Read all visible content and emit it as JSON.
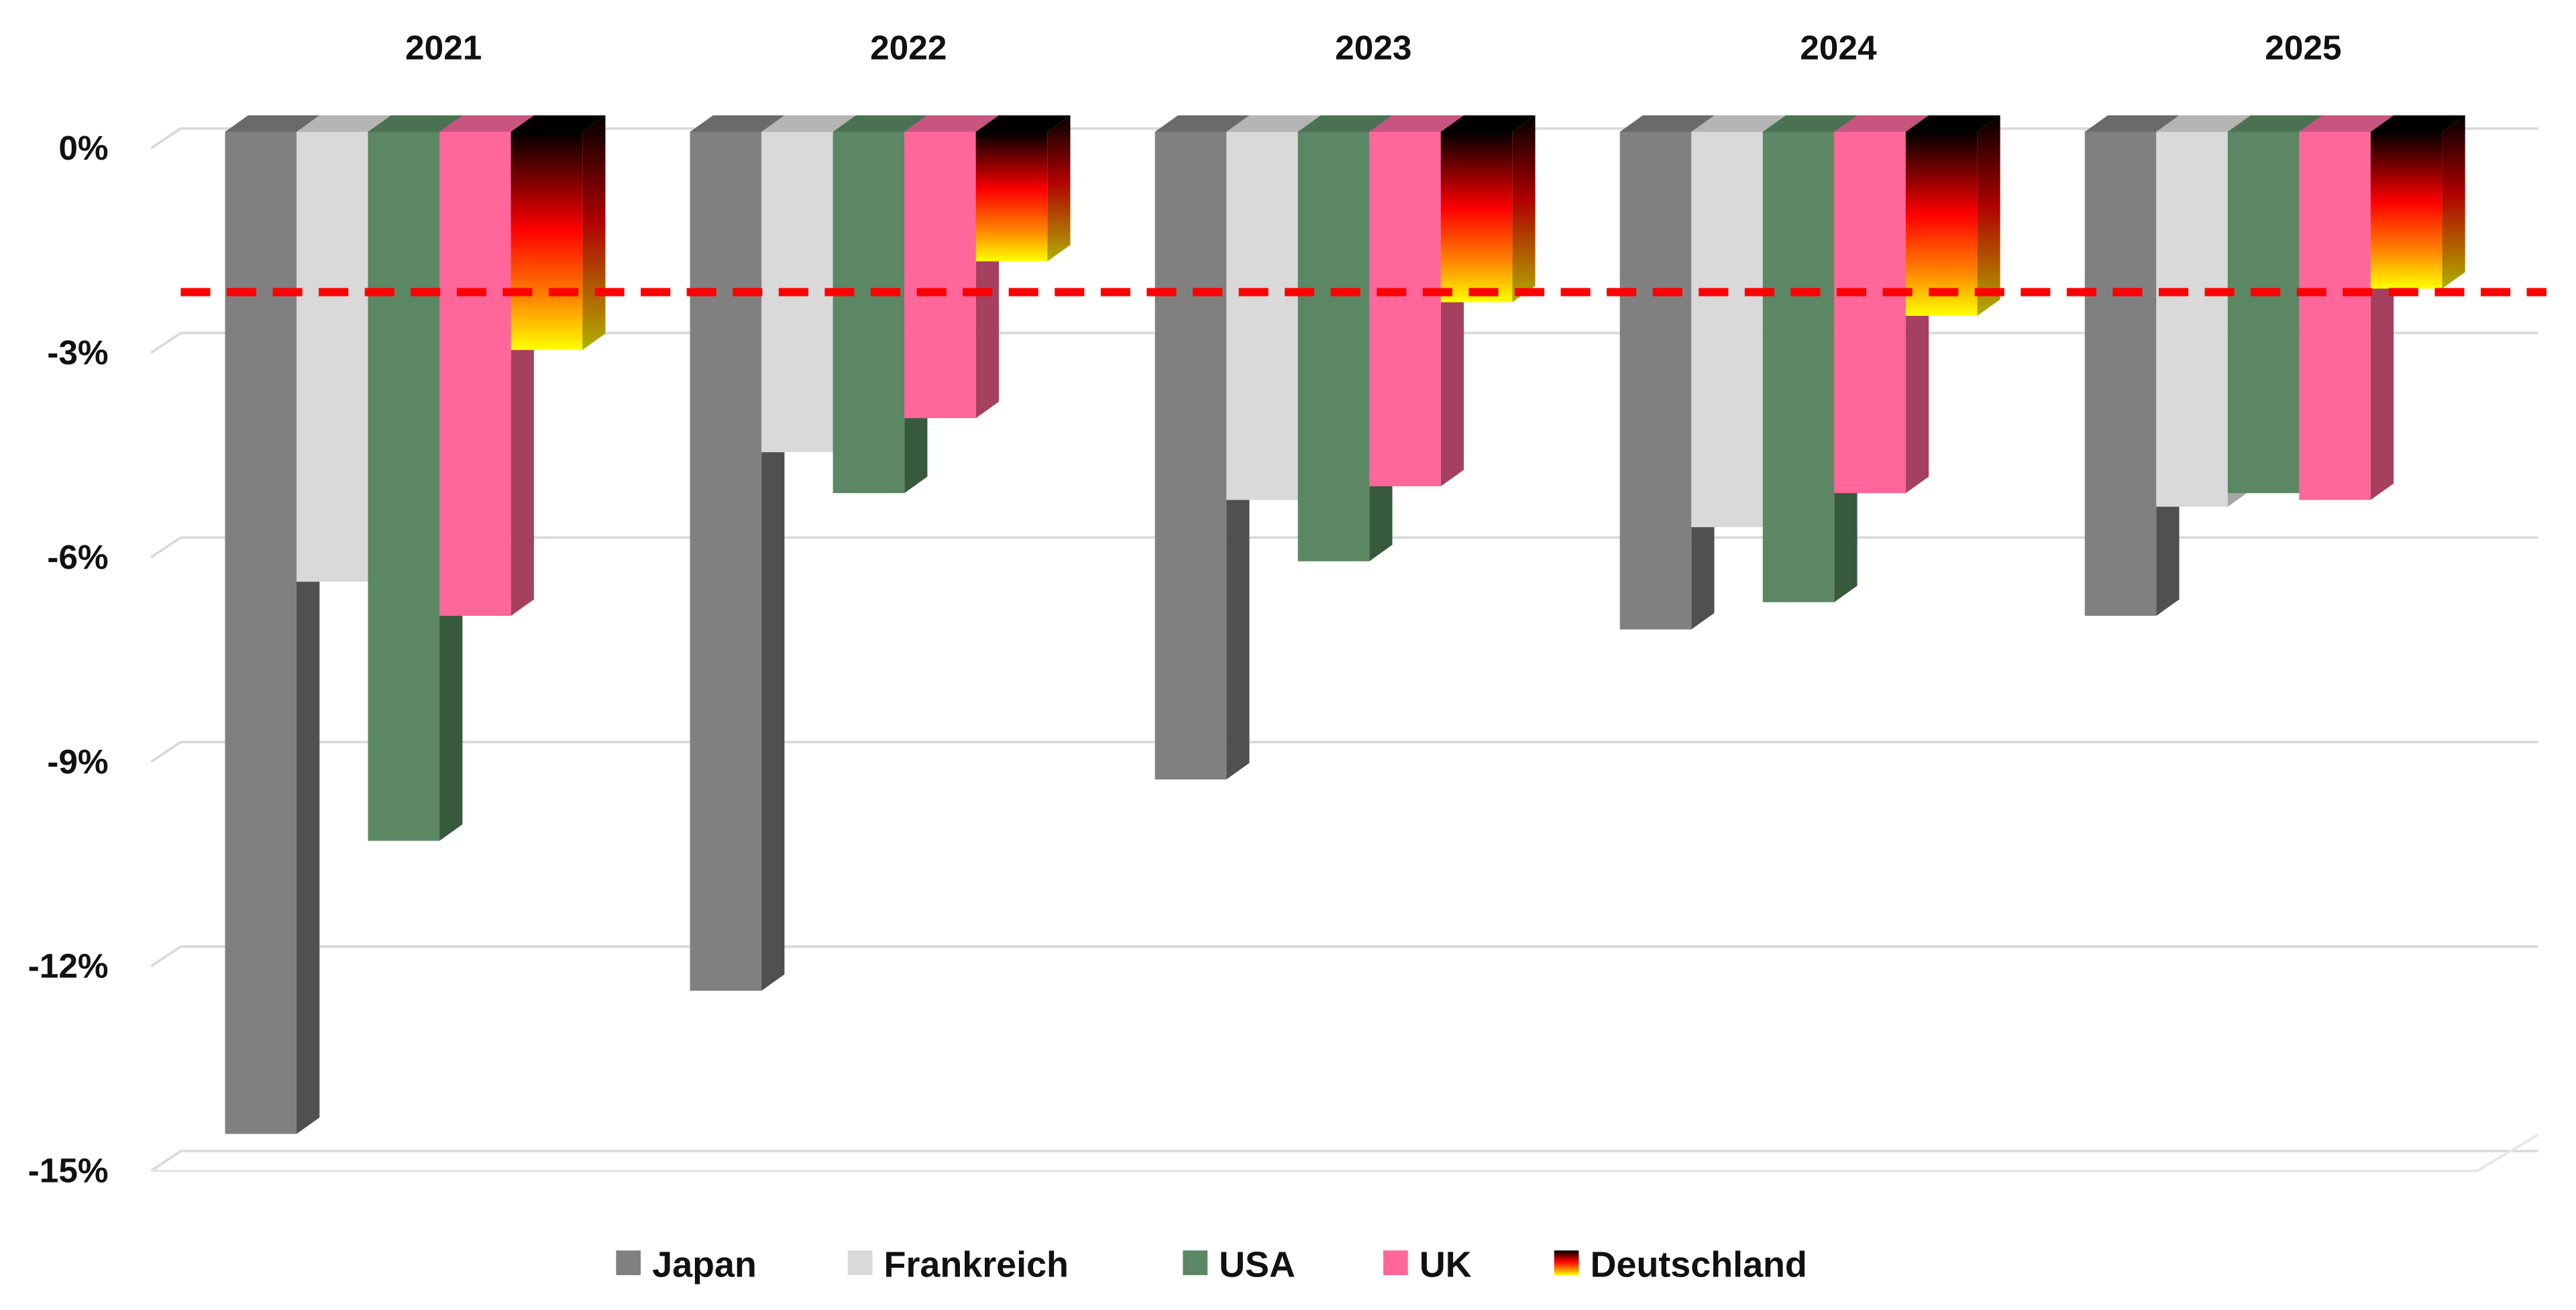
{
  "chart_data": {
    "type": "bar",
    "title": "",
    "xlabel": "",
    "ylabel": "",
    "categories": [
      "2021",
      "2022",
      "2023",
      "2024",
      "2025"
    ],
    "ylim": [
      -15,
      0
    ],
    "yticks": [
      0,
      -3,
      -6,
      -9,
      -12,
      -15
    ],
    "ytick_labels": [
      "0%",
      "-3%",
      "-6%",
      "-9%",
      "-12%",
      "-15%"
    ],
    "grid": true,
    "legend_position": "bottom",
    "series": [
      {
        "name": "Japan",
        "color": "#808080",
        "values": [
          -14.7,
          -12.6,
          -9.5,
          -7.3,
          -7.1
        ]
      },
      {
        "name": "Frankreich",
        "color": "#d9d9d9",
        "values": [
          -6.6,
          -4.7,
          -5.4,
          -5.8,
          -5.5
        ]
      },
      {
        "name": "USA",
        "color": "#5b8764",
        "values": [
          -10.4,
          -5.3,
          -6.3,
          -6.9,
          -5.3
        ]
      },
      {
        "name": "UK",
        "color": "#ff6699",
        "values": [
          -7.1,
          -4.2,
          -5.2,
          -5.3,
          -5.4
        ]
      },
      {
        "name": "Deutschland",
        "color": "gradient-black-red-gold",
        "values": [
          -3.2,
          -1.9,
          -2.5,
          -2.7,
          -2.3
        ]
      }
    ],
    "reference_line": {
      "value": -2.4,
      "color": "#ff0000",
      "style": "dashed"
    }
  }
}
